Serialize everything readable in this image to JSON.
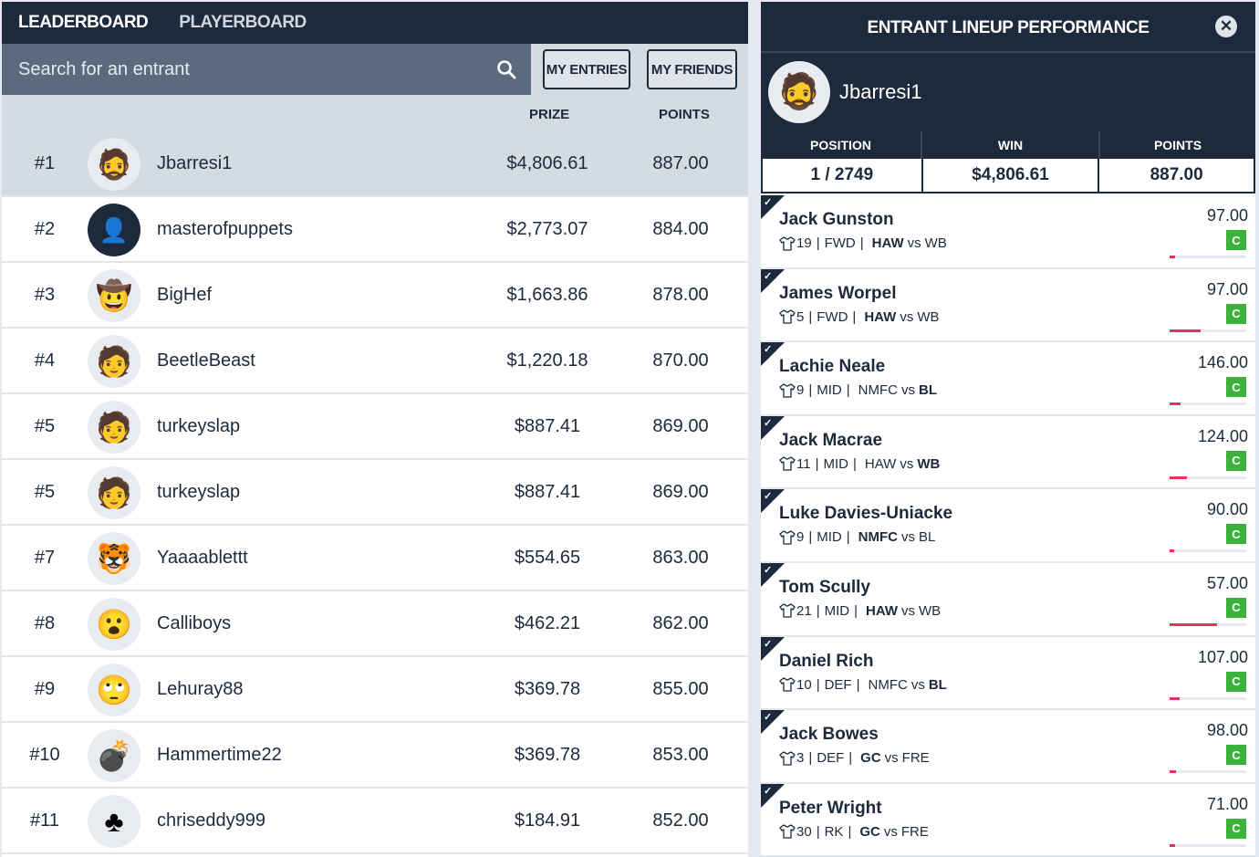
{
  "tabs": {
    "leaderboard": "LEADERBOARD",
    "playerboard": "PLAYERBOARD"
  },
  "search": {
    "placeholder": "Search for an entrant"
  },
  "buttons": {
    "my_entries": "MY ENTRIES",
    "my_friends": "MY FRIENDS"
  },
  "columns": {
    "prize": "PRIZE",
    "points": "POINTS"
  },
  "entrants": [
    {
      "rank": "#1",
      "name": "Jbarresi1",
      "prize": "$4,806.61",
      "points": "887.00",
      "avatar": "🧔",
      "avatar_icon": "homer-avatar"
    },
    {
      "rank": "#2",
      "name": "masterofpuppets",
      "prize": "$2,773.07",
      "points": "884.00",
      "avatar": "👤",
      "avatar_icon": "default-user-avatar"
    },
    {
      "rank": "#3",
      "name": "BigHef",
      "prize": "$1,663.86",
      "points": "878.00",
      "avatar": "🤠",
      "avatar_icon": "cowboy-emoji-avatar"
    },
    {
      "rank": "#4",
      "name": "BeetleBeast",
      "prize": "$1,220.18",
      "points": "870.00",
      "avatar": "🧑",
      "avatar_icon": "photo-avatar"
    },
    {
      "rank": "#5",
      "name": "turkeyslap",
      "prize": "$887.41",
      "points": "869.00",
      "avatar": "🧑",
      "avatar_icon": "photo-avatar"
    },
    {
      "rank": "#5",
      "name": "turkeyslap",
      "prize": "$887.41",
      "points": "869.00",
      "avatar": "🧑",
      "avatar_icon": "photo-avatar"
    },
    {
      "rank": "#7",
      "name": "Yaaaablettt",
      "prize": "$554.65",
      "points": "863.00",
      "avatar": "🐯",
      "avatar_icon": "tiger-emoji-avatar"
    },
    {
      "rank": "#8",
      "name": "Calliboys",
      "prize": "$462.21",
      "points": "862.00",
      "avatar": "😮",
      "avatar_icon": "surprised-emoji-avatar"
    },
    {
      "rank": "#9",
      "name": "Lehuray88",
      "prize": "$369.78",
      "points": "855.00",
      "avatar": "🙄",
      "avatar_icon": "eye-roll-emoji-avatar"
    },
    {
      "rank": "#10",
      "name": "Hammertime22",
      "prize": "$369.78",
      "points": "853.00",
      "avatar": "💣",
      "avatar_icon": "bomb-emoji-avatar"
    },
    {
      "rank": "#11",
      "name": "chriseddy999",
      "prize": "$184.91",
      "points": "852.00",
      "avatar": "♣",
      "avatar_icon": "club-avatar"
    }
  ],
  "panel": {
    "title": "ENTRANT LINEUP PERFORMANCE",
    "entrant_name": "Jbarresi1",
    "stats_headers": {
      "position": "POSITION",
      "win": "WIN",
      "points": "POINTS"
    },
    "stats_values": {
      "position": "1 / 2749",
      "win": "$4,806.61",
      "points": "887.00"
    },
    "players": [
      {
        "name": "Jack Gunston",
        "number": "19",
        "pos": "FWD",
        "home": "HAW",
        "away": "WB",
        "bold_team": "HAW",
        "points": "97.00",
        "badge": "C",
        "progress": 0.07
      },
      {
        "name": "James Worpel",
        "number": "5",
        "pos": "FWD",
        "home": "HAW",
        "away": "WB",
        "bold_team": "HAW",
        "points": "97.00",
        "badge": "C",
        "progress": 0.4
      },
      {
        "name": "Lachie Neale",
        "number": "9",
        "pos": "MID",
        "home": "NMFC",
        "away": "BL",
        "bold_team": "BL",
        "points": "146.00",
        "badge": "C",
        "progress": 0.14
      },
      {
        "name": "Jack Macrae",
        "number": "11",
        "pos": "MID",
        "home": "HAW",
        "away": "WB",
        "bold_team": "WB",
        "points": "124.00",
        "badge": "C",
        "progress": 0.23
      },
      {
        "name": "Luke Davies-Uniacke",
        "number": "9",
        "pos": "MID",
        "home": "NMFC",
        "away": "BL",
        "bold_team": "NMFC",
        "points": "90.00",
        "badge": "C",
        "progress": 0.06
      },
      {
        "name": "Tom Scully",
        "number": "21",
        "pos": "MID",
        "home": "HAW",
        "away": "WB",
        "bold_team": "HAW",
        "points": "57.00",
        "badge": "C",
        "progress": 0.62
      },
      {
        "name": "Daniel Rich",
        "number": "10",
        "pos": "DEF",
        "home": "NMFC",
        "away": "BL",
        "bold_team": "BL",
        "points": "107.00",
        "badge": "C",
        "progress": 0.13
      },
      {
        "name": "Jack Bowes",
        "number": "3",
        "pos": "DEF",
        "home": "GC",
        "away": "FRE",
        "bold_team": "GC",
        "points": "98.00",
        "badge": "C",
        "progress": 0.08
      },
      {
        "name": "Peter Wright",
        "number": "30",
        "pos": "RK",
        "home": "GC",
        "away": "FRE",
        "bold_team": "GC",
        "points": "71.00",
        "badge": "C",
        "progress": 0.07
      }
    ]
  },
  "colors": {
    "navy": "#1d2a3b",
    "highlight": "#d5dbe3",
    "badge_green": "#3bb33b",
    "progress_red": "#e8325e"
  }
}
